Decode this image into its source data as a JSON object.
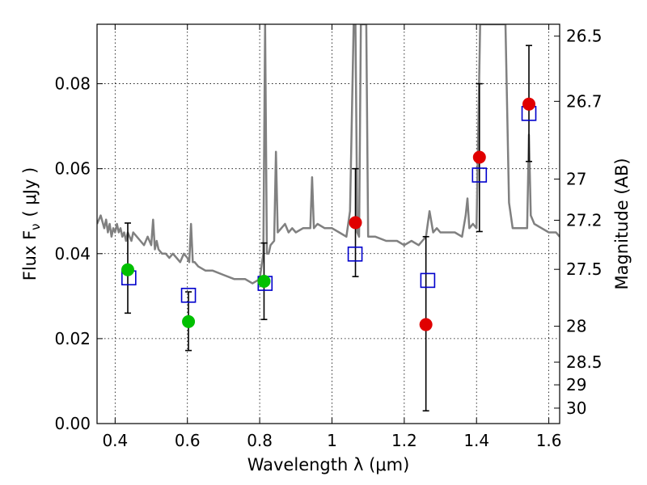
{
  "chart_data": {
    "type": "scatter",
    "title": "",
    "xlabel": "Wavelength  λ (μm)",
    "ylabel": "Flux  F",
    "ylabel_sub": "ν",
    "ylabel_unit": "( μJy )",
    "y2label": "Magnitude (AB)",
    "xlim": [
      0.35,
      1.63
    ],
    "ylim": [
      0.0,
      0.094
    ],
    "grid": true,
    "x_ticks": [
      {
        "value": 0.4,
        "label": "0.4"
      },
      {
        "value": 0.6,
        "label": "0.6"
      },
      {
        "value": 0.8,
        "label": "0.8"
      },
      {
        "value": 1.0,
        "label": "1"
      },
      {
        "value": 1.2,
        "label": "1.2"
      },
      {
        "value": 1.4,
        "label": "1.4"
      },
      {
        "value": 1.6,
        "label": "1.6"
      }
    ],
    "y_ticks": [
      {
        "value": 0.0,
        "label": "0.00"
      },
      {
        "value": 0.02,
        "label": "0.02"
      },
      {
        "value": 0.04,
        "label": "0.04"
      },
      {
        "value": 0.06,
        "label": "0.06"
      },
      {
        "value": 0.08,
        "label": "0.08"
      }
    ],
    "mag_ticks": [
      {
        "value": 26.5,
        "label": "26.5"
      },
      {
        "value": 26.7,
        "label": "26.7"
      },
      {
        "value": 27.0,
        "label": "27"
      },
      {
        "value": 27.2,
        "label": "27.2"
      },
      {
        "value": 27.5,
        "label": "27.5"
      },
      {
        "value": 28.0,
        "label": "28"
      },
      {
        "value": 28.5,
        "label": "28.5"
      },
      {
        "value": 29.0,
        "label": "29"
      },
      {
        "value": 30.0,
        "label": "30"
      }
    ],
    "colors": {
      "model": "#808080",
      "green": "#00c000",
      "red": "#e00000",
      "square": "#0000cc",
      "errorbar": "#000000"
    },
    "model_spectrum": {
      "x": [
        0.35,
        0.36,
        0.37,
        0.375,
        0.38,
        0.385,
        0.39,
        0.395,
        0.4,
        0.405,
        0.41,
        0.415,
        0.42,
        0.425,
        0.43,
        0.435,
        0.44,
        0.445,
        0.45,
        0.46,
        0.47,
        0.48,
        0.49,
        0.5,
        0.505,
        0.51,
        0.515,
        0.52,
        0.53,
        0.54,
        0.55,
        0.56,
        0.57,
        0.58,
        0.59,
        0.6,
        0.605,
        0.61,
        0.615,
        0.62,
        0.63,
        0.65,
        0.67,
        0.7,
        0.73,
        0.76,
        0.78,
        0.8,
        0.81,
        0.815,
        0.82,
        0.825,
        0.83,
        0.84,
        0.845,
        0.85,
        0.86,
        0.87,
        0.88,
        0.89,
        0.9,
        0.92,
        0.94,
        0.945,
        0.95,
        0.96,
        0.98,
        1.0,
        1.02,
        1.04,
        1.05,
        1.06,
        1.065,
        1.07,
        1.075,
        1.08,
        1.085,
        1.09,
        1.095,
        1.1,
        1.12,
        1.15,
        1.18,
        1.2,
        1.22,
        1.24,
        1.25,
        1.26,
        1.27,
        1.28,
        1.29,
        1.3,
        1.32,
        1.34,
        1.36,
        1.37,
        1.375,
        1.38,
        1.39,
        1.4,
        1.41,
        1.42,
        1.43,
        1.44,
        1.45,
        1.46,
        1.47,
        1.48,
        1.49,
        1.5,
        1.52,
        1.54,
        1.545,
        1.55,
        1.56,
        1.58,
        1.6,
        1.62,
        1.63
      ],
      "y": [
        0.047,
        0.049,
        0.046,
        0.048,
        0.045,
        0.047,
        0.044,
        0.046,
        0.045,
        0.047,
        0.045,
        0.046,
        0.044,
        0.045,
        0.043,
        0.045,
        0.044,
        0.043,
        0.045,
        0.044,
        0.043,
        0.042,
        0.044,
        0.042,
        0.048,
        0.041,
        0.043,
        0.041,
        0.04,
        0.04,
        0.039,
        0.04,
        0.039,
        0.038,
        0.04,
        0.039,
        0.038,
        0.047,
        0.038,
        0.038,
        0.037,
        0.036,
        0.036,
        0.035,
        0.034,
        0.034,
        0.033,
        0.034,
        0.04,
        0.094,
        0.04,
        0.04,
        0.042,
        0.043,
        0.064,
        0.045,
        0.046,
        0.047,
        0.045,
        0.046,
        0.045,
        0.046,
        0.046,
        0.058,
        0.046,
        0.047,
        0.046,
        0.046,
        0.045,
        0.044,
        0.05,
        0.094,
        0.094,
        0.045,
        0.044,
        0.094,
        0.094,
        0.094,
        0.094,
        0.044,
        0.044,
        0.043,
        0.043,
        0.042,
        0.043,
        0.042,
        0.043,
        0.044,
        0.05,
        0.045,
        0.046,
        0.045,
        0.045,
        0.045,
        0.044,
        0.049,
        0.053,
        0.046,
        0.047,
        0.046,
        0.094,
        0.094,
        0.094,
        0.094,
        0.094,
        0.094,
        0.094,
        0.094,
        0.052,
        0.046,
        0.046,
        0.046,
        0.068,
        0.049,
        0.047,
        0.046,
        0.045,
        0.045,
        0.044
      ]
    },
    "green_points": [
      {
        "x": 0.435,
        "y": 0.0362,
        "err_low": 0.026,
        "err_high": 0.0472
      },
      {
        "x": 0.603,
        "y": 0.024,
        "err_low": 0.0172,
        "err_high": 0.031
      },
      {
        "x": 0.812,
        "y": 0.0335,
        "err_low": 0.0245,
        "err_high": 0.0425
      }
    ],
    "red_points": [
      {
        "x": 1.065,
        "y": 0.0473,
        "err_low": 0.0346,
        "err_high": 0.06
      },
      {
        "x": 1.26,
        "y": 0.0233,
        "err_low": 0.003,
        "err_high": 0.044
      },
      {
        "x": 1.408,
        "y": 0.0627,
        "err_low": 0.0452,
        "err_high": 0.08
      },
      {
        "x": 1.545,
        "y": 0.0752,
        "err_low": 0.0617,
        "err_high": 0.089
      }
    ],
    "model_squares": [
      {
        "x": 0.438,
        "y": 0.0343
      },
      {
        "x": 0.603,
        "y": 0.0302
      },
      {
        "x": 0.815,
        "y": 0.033
      },
      {
        "x": 1.064,
        "y": 0.0399
      },
      {
        "x": 1.265,
        "y": 0.0337
      },
      {
        "x": 1.408,
        "y": 0.0585
      },
      {
        "x": 1.545,
        "y": 0.073
      }
    ]
  }
}
